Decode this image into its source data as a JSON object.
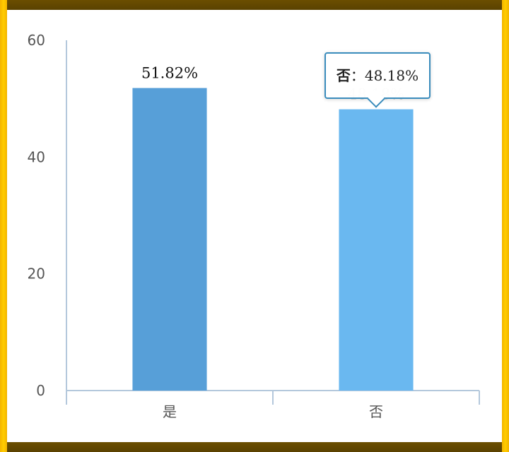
{
  "chart_data": {
    "type": "bar",
    "categories": [
      "是",
      "否"
    ],
    "values": [
      51.82,
      48.18
    ],
    "data_labels": [
      "51.82%",
      "48.18%"
    ],
    "ylim": [
      0,
      60
    ],
    "yticks": [
      0,
      20,
      40,
      60
    ],
    "colors": [
      "#579fd8",
      "#6ab8f0"
    ],
    "grid": false
  },
  "tooltip": {
    "category": "否",
    "separator": "：",
    "value": "48.18%"
  }
}
